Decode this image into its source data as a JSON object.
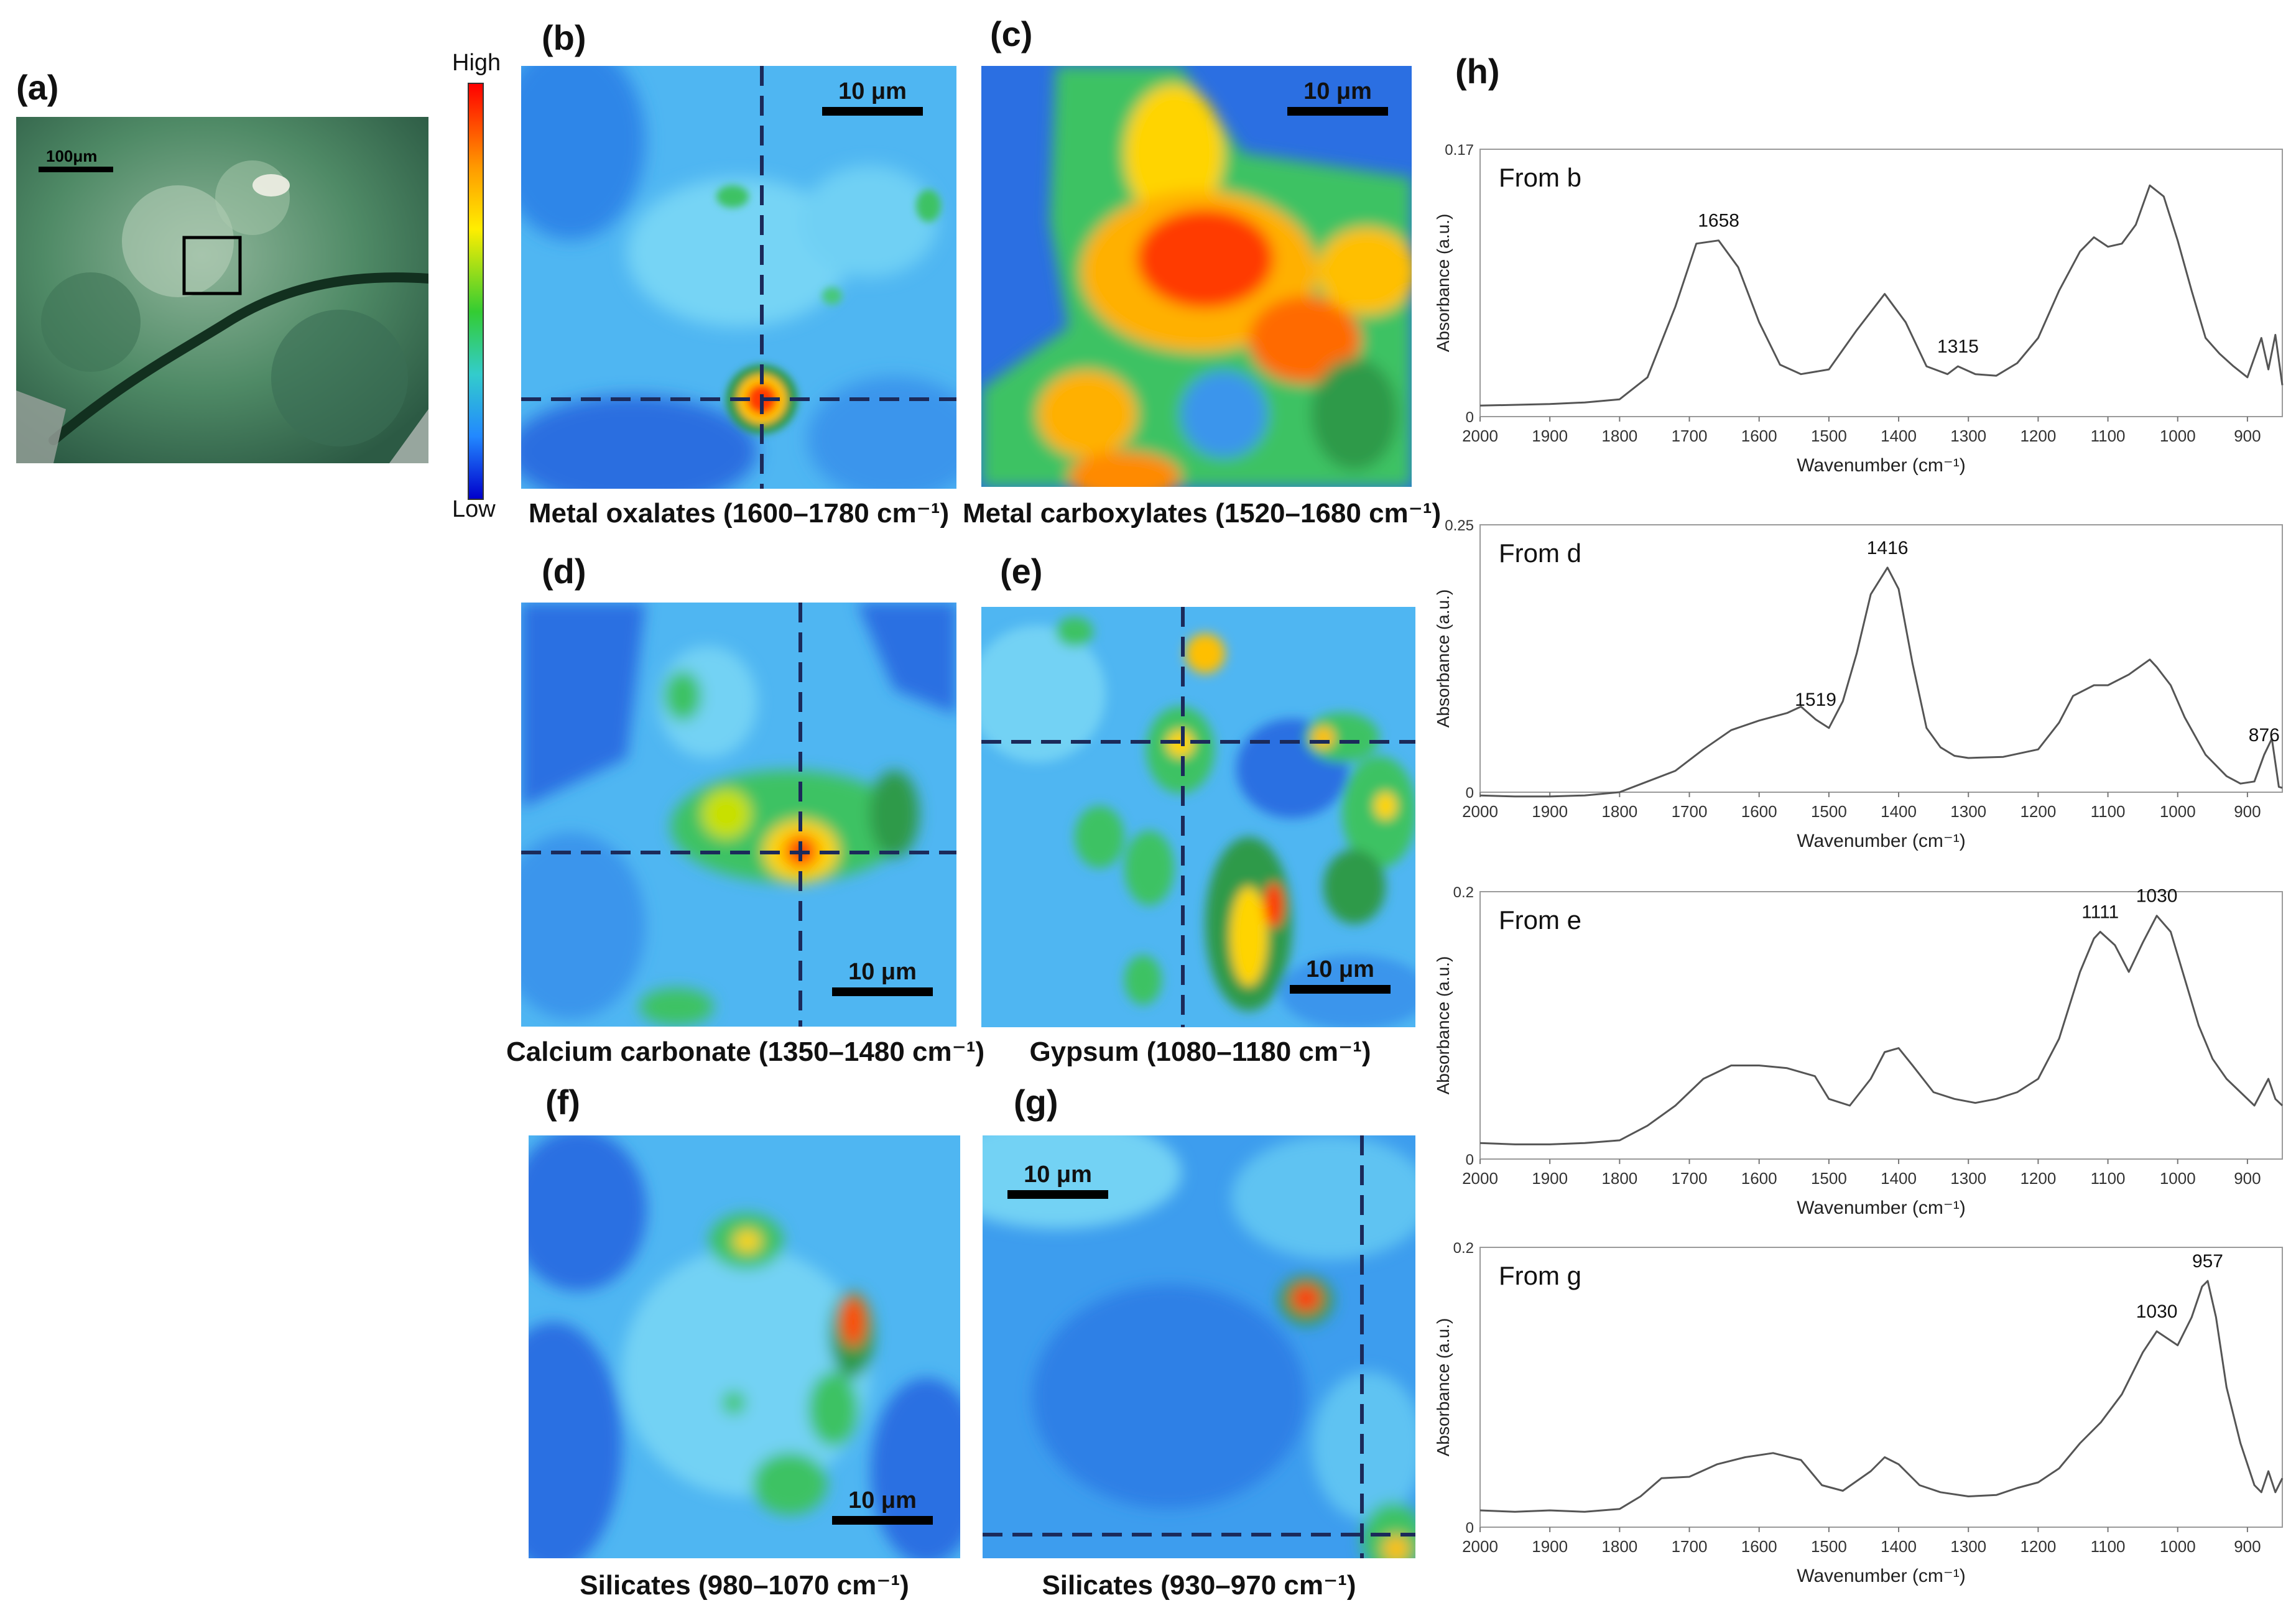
{
  "figure": {
    "photo": {
      "letter": "(a)",
      "scale_label": "100μm"
    },
    "colorbar": {
      "high": "High",
      "low": "Low"
    },
    "maps": [
      {
        "letter": "(b)",
        "scale_label": "10 μm",
        "caption": "Metal oxalates (1600–1780 cm⁻¹)"
      },
      {
        "letter": "(c)",
        "scale_label": "10 μm",
        "caption": "Metal carboxylates (1520–1680 cm⁻¹)"
      },
      {
        "letter": "(d)",
        "scale_label": "10 μm",
        "caption": "Calcium carbonate (1350–1480 cm⁻¹)"
      },
      {
        "letter": "(e)",
        "scale_label": "10 μm",
        "caption": "Gypsum (1080–1180 cm⁻¹)"
      },
      {
        "letter": "(f)",
        "scale_label": "10 μm",
        "caption": "Silicates (980–1070 cm⁻¹)"
      },
      {
        "letter": "(g)",
        "scale_label": "10 μm",
        "caption": "Silicates (930–970 cm⁻¹)"
      }
    ],
    "spectra_letter": "(h)"
  },
  "colors": {
    "map_low": "#1a4fd6",
    "map_mid": "#36c6f0",
    "map_green": "#2aa84a",
    "map_high": "#ff2a00",
    "crosshair": "#1b2a5a",
    "spectrum_line": "#555555"
  },
  "chart_data": [
    {
      "type": "line",
      "title": "From b",
      "xlabel": "Wavenumber (cm⁻¹)",
      "ylabel": "Absorbance (a.u.)",
      "xlim": [
        2000,
        850
      ],
      "ylim": [
        0,
        0.17
      ],
      "x_ticks": [
        "2000",
        "1900",
        "1800",
        "1700",
        "1600",
        "1500",
        "1400",
        "1300",
        "1200",
        "1100",
        "1000",
        "900"
      ],
      "y_ticks": [
        "0",
        "0.17"
      ],
      "annotations": [
        {
          "x": 1658,
          "label": "1658"
        },
        {
          "x": 1315,
          "label": "1315"
        }
      ],
      "x": [
        2000,
        1900,
        1850,
        1800,
        1760,
        1720,
        1690,
        1658,
        1630,
        1600,
        1570,
        1540,
        1500,
        1460,
        1420,
        1390,
        1360,
        1330,
        1315,
        1290,
        1260,
        1230,
        1200,
        1170,
        1140,
        1120,
        1100,
        1080,
        1060,
        1040,
        1020,
        1000,
        980,
        960,
        940,
        920,
        900,
        880,
        870,
        860,
        850
      ],
      "y": [
        0.007,
        0.008,
        0.009,
        0.011,
        0.025,
        0.07,
        0.11,
        0.112,
        0.095,
        0.06,
        0.033,
        0.027,
        0.03,
        0.055,
        0.078,
        0.06,
        0.032,
        0.027,
        0.032,
        0.027,
        0.026,
        0.034,
        0.05,
        0.08,
        0.105,
        0.114,
        0.108,
        0.11,
        0.122,
        0.147,
        0.14,
        0.112,
        0.08,
        0.05,
        0.04,
        0.032,
        0.025,
        0.05,
        0.03,
        0.052,
        0.02
      ]
    },
    {
      "type": "line",
      "title": "From d",
      "xlabel": "Wavenumber (cm⁻¹)",
      "ylabel": "Absorbance (a.u.)",
      "xlim": [
        2000,
        850
      ],
      "ylim": [
        0,
        0.25
      ],
      "x_ticks": [
        "2000",
        "1900",
        "1800",
        "1700",
        "1600",
        "1500",
        "1400",
        "1300",
        "1200",
        "1100",
        "1000",
        "900"
      ],
      "y_ticks": [
        "0",
        "0.25"
      ],
      "annotations": [
        {
          "x": 1519,
          "label": "1519"
        },
        {
          "x": 1416,
          "label": "1416"
        },
        {
          "x": 876,
          "label": "876"
        }
      ],
      "x": [
        2000,
        1950,
        1900,
        1850,
        1800,
        1760,
        1720,
        1680,
        1640,
        1600,
        1560,
        1540,
        1519,
        1500,
        1480,
        1460,
        1440,
        1416,
        1400,
        1380,
        1360,
        1340,
        1320,
        1300,
        1250,
        1200,
        1170,
        1150,
        1120,
        1100,
        1070,
        1040,
        1030,
        1010,
        990,
        960,
        930,
        910,
        890,
        876,
        865,
        855,
        850
      ],
      "y": [
        -0.003,
        -0.004,
        -0.004,
        -0.003,
        0.0,
        0.01,
        0.02,
        0.04,
        0.058,
        0.067,
        0.074,
        0.08,
        0.068,
        0.06,
        0.085,
        0.13,
        0.185,
        0.21,
        0.19,
        0.12,
        0.06,
        0.042,
        0.034,
        0.032,
        0.033,
        0.04,
        0.065,
        0.09,
        0.1,
        0.1,
        0.11,
        0.124,
        0.117,
        0.1,
        0.07,
        0.035,
        0.015,
        0.008,
        0.01,
        0.035,
        0.05,
        0.005,
        0.004
      ]
    },
    {
      "type": "line",
      "title": "From e",
      "xlabel": "Wavenumber (cm⁻¹)",
      "ylabel": "Absorbance (a.u.)",
      "xlim": [
        2000,
        850
      ],
      "ylim": [
        0,
        0.2
      ],
      "x_ticks": [
        "2000",
        "1900",
        "1800",
        "1700",
        "1600",
        "1500",
        "1400",
        "1300",
        "1200",
        "1100",
        "1000",
        "900"
      ],
      "y_ticks": [
        "0",
        "0.2"
      ],
      "annotations": [
        {
          "x": 1111,
          "label": "1111"
        },
        {
          "x": 1030,
          "label": "1030"
        }
      ],
      "x": [
        2000,
        1950,
        1900,
        1850,
        1800,
        1760,
        1720,
        1680,
        1640,
        1600,
        1560,
        1520,
        1500,
        1470,
        1440,
        1420,
        1400,
        1380,
        1350,
        1320,
        1290,
        1260,
        1230,
        1200,
        1170,
        1140,
        1120,
        1111,
        1090,
        1070,
        1050,
        1030,
        1010,
        990,
        970,
        950,
        930,
        910,
        890,
        870,
        860,
        850
      ],
      "y": [
        0.012,
        0.011,
        0.011,
        0.012,
        0.014,
        0.025,
        0.04,
        0.06,
        0.07,
        0.07,
        0.068,
        0.062,
        0.045,
        0.04,
        0.06,
        0.08,
        0.083,
        0.07,
        0.05,
        0.045,
        0.042,
        0.045,
        0.05,
        0.06,
        0.09,
        0.14,
        0.165,
        0.17,
        0.16,
        0.14,
        0.162,
        0.182,
        0.17,
        0.135,
        0.1,
        0.075,
        0.06,
        0.05,
        0.04,
        0.06,
        0.045,
        0.04
      ]
    },
    {
      "type": "line",
      "title": "From g",
      "xlabel": "Wavenumber (cm⁻¹)",
      "ylabel": "Absorbance (a.u.)",
      "xlim": [
        2000,
        850
      ],
      "ylim": [
        0,
        0.2
      ],
      "x_ticks": [
        "2000",
        "1900",
        "1800",
        "1700",
        "1600",
        "1500",
        "1400",
        "1300",
        "1200",
        "1100",
        "1000",
        "900"
      ],
      "y_ticks": [
        "0",
        "0.2"
      ],
      "annotations": [
        {
          "x": 1030,
          "label": "1030"
        },
        {
          "x": 957,
          "label": "957"
        }
      ],
      "x": [
        2000,
        1950,
        1900,
        1850,
        1800,
        1770,
        1740,
        1700,
        1660,
        1620,
        1580,
        1540,
        1510,
        1480,
        1440,
        1420,
        1400,
        1370,
        1340,
        1300,
        1260,
        1230,
        1200,
        1170,
        1140,
        1110,
        1080,
        1050,
        1030,
        1000,
        980,
        965,
        957,
        945,
        930,
        910,
        890,
        880,
        870,
        860,
        850
      ],
      "y": [
        0.012,
        0.011,
        0.012,
        0.011,
        0.013,
        0.022,
        0.035,
        0.036,
        0.045,
        0.05,
        0.053,
        0.048,
        0.03,
        0.026,
        0.04,
        0.05,
        0.045,
        0.03,
        0.025,
        0.022,
        0.023,
        0.028,
        0.032,
        0.042,
        0.06,
        0.075,
        0.095,
        0.125,
        0.14,
        0.13,
        0.15,
        0.172,
        0.176,
        0.15,
        0.1,
        0.06,
        0.03,
        0.025,
        0.04,
        0.025,
        0.035
      ]
    }
  ]
}
